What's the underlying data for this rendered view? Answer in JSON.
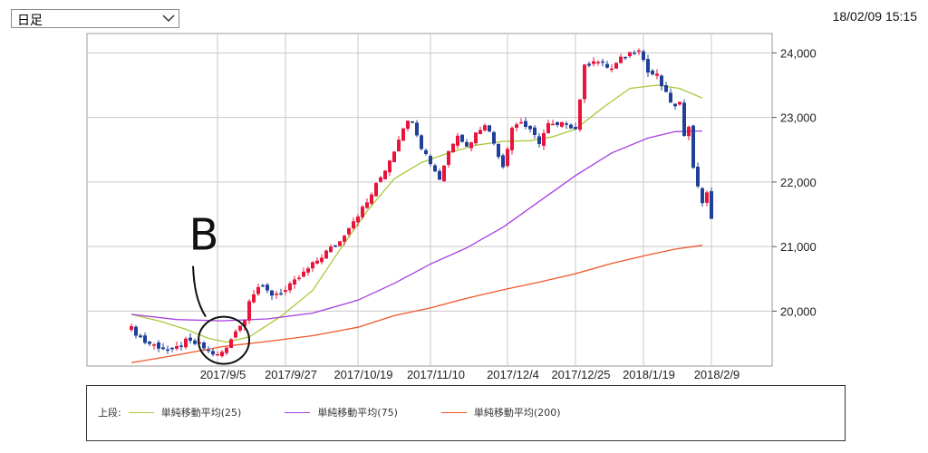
{
  "header": {
    "period_selector": "日足",
    "timestamp": "18/02/09 15:15"
  },
  "legend": {
    "prefix": "上段:",
    "items": [
      {
        "label": "単純移動平均(25)",
        "color": "#a6c93a"
      },
      {
        "label": "単純移動平均(75)",
        "color": "#a53fe0"
      },
      {
        "label": "単純移動平均(200)",
        "color": "#f0562a"
      }
    ]
  },
  "annotation": {
    "letter": "B"
  },
  "colors": {
    "up": "#e8143c",
    "down": "#1f3f9a",
    "grid": "#c8c8c8"
  },
  "chart_data": {
    "type": "candlestick",
    "title": "",
    "ylim": [
      19150,
      24300
    ],
    "y_ticks": [
      20000,
      21000,
      22000,
      23000,
      24000
    ],
    "y_tick_labels": [
      "20,000",
      "21,000",
      "22,000",
      "23,000",
      "24,000"
    ],
    "x_count": 140,
    "x_ticks": [
      {
        "label": "2017/9/5",
        "index": 19
      },
      {
        "label": "2017/9/27",
        "index": 34
      },
      {
        "label": "2017/10/19",
        "index": 50
      },
      {
        "label": "2017/11/10",
        "index": 66
      },
      {
        "label": "2017/12/4",
        "index": 83
      },
      {
        "label": "2017/12/25",
        "index": 98
      },
      {
        "label": "2018/1/19",
        "index": 113
      },
      {
        "label": "2018/2/9",
        "index": 128
      }
    ],
    "ma_keypoints": [
      {
        "name": "単純移動平均(25)",
        "color": "#a6c93a",
        "points": [
          [
            0,
            19950
          ],
          [
            6,
            19850
          ],
          [
            12,
            19720
          ],
          [
            17,
            19580
          ],
          [
            21,
            19520
          ],
          [
            26,
            19600
          ],
          [
            33,
            19920
          ],
          [
            40,
            20320
          ],
          [
            46,
            20950
          ],
          [
            52,
            21550
          ],
          [
            58,
            22050
          ],
          [
            64,
            22300
          ],
          [
            70,
            22450
          ],
          [
            76,
            22570
          ],
          [
            82,
            22630
          ],
          [
            88,
            22640
          ],
          [
            93,
            22700
          ],
          [
            98,
            22820
          ],
          [
            104,
            23150
          ],
          [
            110,
            23450
          ],
          [
            116,
            23500
          ],
          [
            121,
            23450
          ],
          [
            126,
            23300
          ]
        ]
      },
      {
        "name": "単純移動平均(75)",
        "color": "#a53fe0",
        "points": [
          [
            0,
            19950
          ],
          [
            10,
            19870
          ],
          [
            20,
            19850
          ],
          [
            30,
            19880
          ],
          [
            40,
            19970
          ],
          [
            50,
            20170
          ],
          [
            58,
            20430
          ],
          [
            66,
            20730
          ],
          [
            74,
            20980
          ],
          [
            82,
            21300
          ],
          [
            90,
            21700
          ],
          [
            98,
            22100
          ],
          [
            106,
            22450
          ],
          [
            114,
            22680
          ],
          [
            120,
            22780
          ],
          [
            126,
            22790
          ]
        ]
      },
      {
        "name": "単純移動平均(200)",
        "color": "#f0562a",
        "points": [
          [
            0,
            19200
          ],
          [
            10,
            19320
          ],
          [
            20,
            19450
          ],
          [
            30,
            19530
          ],
          [
            40,
            19620
          ],
          [
            50,
            19750
          ],
          [
            58,
            19930
          ],
          [
            66,
            20050
          ],
          [
            74,
            20200
          ],
          [
            82,
            20330
          ],
          [
            90,
            20450
          ],
          [
            98,
            20580
          ],
          [
            106,
            20740
          ],
          [
            114,
            20870
          ],
          [
            120,
            20960
          ],
          [
            126,
            21020
          ]
        ]
      }
    ],
    "close_keypoints": [
      [
        0,
        19730
      ],
      [
        3,
        19520
      ],
      [
        6,
        19450
      ],
      [
        9,
        19380
      ],
      [
        12,
        19530
      ],
      [
        15,
        19480
      ],
      [
        17,
        19380
      ],
      [
        19,
        19310
      ],
      [
        21,
        19420
      ],
      [
        23,
        19720
      ],
      [
        25,
        19860
      ],
      [
        26,
        20200
      ],
      [
        28,
        20380
      ],
      [
        31,
        20260
      ],
      [
        34,
        20320
      ],
      [
        37,
        20520
      ],
      [
        40,
        20720
      ],
      [
        43,
        20920
      ],
      [
        46,
        21080
      ],
      [
        48,
        21320
      ],
      [
        50,
        21500
      ],
      [
        52,
        21680
      ],
      [
        54,
        21950
      ],
      [
        56,
        22200
      ],
      [
        58,
        22500
      ],
      [
        60,
        22870
      ],
      [
        62,
        22970
      ],
      [
        64,
        22550
      ],
      [
        66,
        22300
      ],
      [
        68,
        22050
      ],
      [
        70,
        22480
      ],
      [
        72,
        22760
      ],
      [
        74,
        22540
      ],
      [
        76,
        22750
      ],
      [
        78,
        22920
      ],
      [
        80,
        22600
      ],
      [
        82,
        22250
      ],
      [
        84,
        22850
      ],
      [
        86,
        22940
      ],
      [
        88,
        22780
      ],
      [
        90,
        22620
      ],
      [
        92,
        22890
      ],
      [
        94,
        22860
      ],
      [
        96,
        22920
      ],
      [
        98,
        22820
      ],
      [
        100,
        23780
      ],
      [
        102,
        23900
      ],
      [
        104,
        23820
      ],
      [
        106,
        23750
      ],
      [
        108,
        23900
      ],
      [
        110,
        24000
      ],
      [
        112,
        24080
      ],
      [
        114,
        23700
      ],
      [
        116,
        23640
      ],
      [
        118,
        23350
      ],
      [
        120,
        23150
      ],
      [
        121,
        23200
      ],
      [
        122,
        22750
      ],
      [
        123,
        22900
      ],
      [
        124,
        22200
      ],
      [
        125,
        21950
      ],
      [
        126,
        21700
      ],
      [
        127,
        21800
      ],
      [
        128,
        21450
      ]
    ],
    "gaps": [
      [
        123,
        124
      ]
    ],
    "highlight": {
      "index": 18,
      "value": 19520,
      "label": "B"
    }
  }
}
